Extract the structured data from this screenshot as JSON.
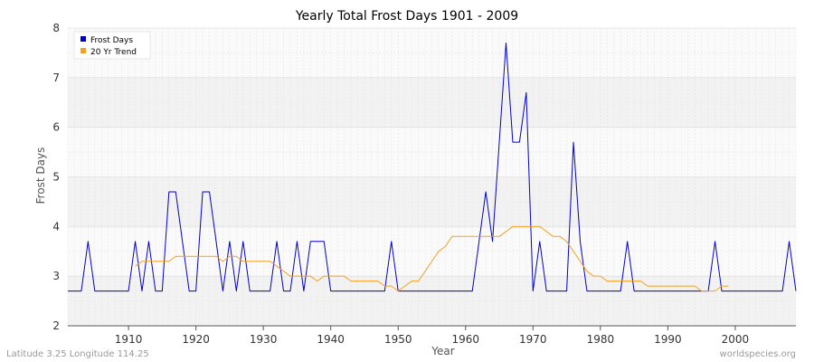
{
  "chart_data": {
    "type": "line",
    "title": "Yearly Total Frost Days 1901 - 2009",
    "xlabel": "Year",
    "ylabel": "Frost Days",
    "xlim": [
      1901,
      2009
    ],
    "ylim": [
      2,
      8
    ],
    "x_ticks": [
      1910,
      1920,
      1930,
      1940,
      1950,
      1960,
      1970,
      1980,
      1990,
      2000
    ],
    "y_ticks": [
      2,
      3,
      4,
      5,
      6,
      7,
      8
    ],
    "grid": true,
    "legend_position": "top-left",
    "series": [
      {
        "name": "Frost Days",
        "color": "#0000cc",
        "x": [
          1901,
          1902,
          1903,
          1904,
          1905,
          1906,
          1907,
          1908,
          1909,
          1910,
          1911,
          1912,
          1913,
          1914,
          1915,
          1916,
          1917,
          1918,
          1919,
          1920,
          1921,
          1922,
          1923,
          1924,
          1925,
          1926,
          1927,
          1928,
          1929,
          1930,
          1931,
          1932,
          1933,
          1934,
          1935,
          1936,
          1937,
          1938,
          1939,
          1940,
          1941,
          1942,
          1943,
          1944,
          1945,
          1946,
          1947,
          1948,
          1949,
          1950,
          1951,
          1952,
          1953,
          1954,
          1955,
          1956,
          1957,
          1958,
          1959,
          1960,
          1961,
          1962,
          1963,
          1964,
          1965,
          1966,
          1967,
          1968,
          1969,
          1970,
          1971,
          1972,
          1973,
          1974,
          1975,
          1976,
          1977,
          1978,
          1979,
          1980,
          1981,
          1982,
          1983,
          1984,
          1985,
          1986,
          1987,
          1988,
          1989,
          1990,
          1991,
          1992,
          1993,
          1994,
          1995,
          1996,
          1997,
          1998,
          1999,
          2000,
          2001,
          2002,
          2003,
          2004,
          2005,
          2006,
          2007,
          2008,
          2009
        ],
        "values": [
          2.7,
          2.7,
          2.7,
          3.7,
          2.7,
          2.7,
          2.7,
          2.7,
          2.7,
          2.7,
          3.7,
          2.7,
          3.7,
          2.7,
          2.7,
          4.7,
          4.7,
          3.7,
          2.7,
          2.7,
          4.7,
          4.7,
          3.7,
          2.7,
          3.7,
          2.7,
          3.7,
          2.7,
          2.7,
          2.7,
          2.7,
          3.7,
          2.7,
          2.7,
          3.7,
          2.7,
          3.7,
          3.7,
          3.7,
          2.7,
          2.7,
          2.7,
          2.7,
          2.7,
          2.7,
          2.7,
          2.7,
          2.7,
          3.7,
          2.7,
          2.7,
          2.7,
          2.7,
          2.7,
          2.7,
          2.7,
          2.7,
          2.7,
          2.7,
          2.7,
          2.7,
          3.7,
          4.7,
          3.7,
          5.7,
          7.7,
          5.7,
          5.7,
          6.7,
          2.7,
          3.7,
          2.7,
          2.7,
          2.7,
          2.7,
          5.7,
          3.7,
          2.7,
          2.7,
          2.7,
          2.7,
          2.7,
          2.7,
          3.7,
          2.7,
          2.7,
          2.7,
          2.7,
          2.7,
          2.7,
          2.7,
          2.7,
          2.7,
          2.7,
          2.7,
          2.7,
          3.7,
          2.7,
          2.7,
          2.7,
          2.7,
          2.7,
          2.7,
          2.7,
          2.7,
          2.7,
          2.7,
          3.7,
          2.7
        ]
      },
      {
        "name": "20 Yr Trend",
        "color": "#f5a020",
        "x": [
          1911,
          1912,
          1913,
          1914,
          1915,
          1916,
          1917,
          1918,
          1919,
          1920,
          1921,
          1922,
          1923,
          1924,
          1925,
          1926,
          1927,
          1928,
          1929,
          1930,
          1931,
          1932,
          1933,
          1934,
          1935,
          1936,
          1937,
          1938,
          1939,
          1940,
          1941,
          1942,
          1943,
          1944,
          1945,
          1946,
          1947,
          1948,
          1949,
          1950,
          1951,
          1952,
          1953,
          1954,
          1955,
          1956,
          1957,
          1958,
          1959,
          1960,
          1961,
          1962,
          1963,
          1964,
          1965,
          1966,
          1967,
          1968,
          1969,
          1970,
          1971,
          1972,
          1973,
          1974,
          1975,
          1976,
          1977,
          1978,
          1979,
          1980,
          1981,
          1982,
          1983,
          1984,
          1985,
          1986,
          1987,
          1988,
          1989,
          1990,
          1991,
          1992,
          1993,
          1994,
          1995,
          1996,
          1997,
          1998,
          1999
        ],
        "values": [
          3.2,
          3.3,
          3.3,
          3.3,
          3.3,
          3.3,
          3.4,
          3.4,
          3.4,
          3.4,
          3.4,
          3.4,
          3.4,
          3.3,
          3.4,
          3.4,
          3.3,
          3.3,
          3.3,
          3.3,
          3.3,
          3.2,
          3.1,
          3.0,
          3.0,
          3.0,
          3.0,
          2.9,
          3.0,
          3.0,
          3.0,
          3.0,
          2.9,
          2.9,
          2.9,
          2.9,
          2.9,
          2.8,
          2.8,
          2.7,
          2.8,
          2.9,
          2.9,
          3.1,
          3.3,
          3.5,
          3.6,
          3.8,
          3.8,
          3.8,
          3.8,
          3.8,
          3.8,
          3.8,
          3.8,
          3.9,
          4.0,
          4.0,
          4.0,
          4.0,
          4.0,
          3.9,
          3.8,
          3.8,
          3.7,
          3.5,
          3.3,
          3.1,
          3.0,
          3.0,
          2.9,
          2.9,
          2.9,
          2.9,
          2.9,
          2.9,
          2.8,
          2.8,
          2.8,
          2.8,
          2.8,
          2.8,
          2.8,
          2.8,
          2.7,
          2.7,
          2.7,
          2.8,
          2.8
        ]
      }
    ]
  },
  "footer": {
    "left": "Latitude 3.25 Longitude 114.25",
    "right": "worldspecies.org"
  }
}
